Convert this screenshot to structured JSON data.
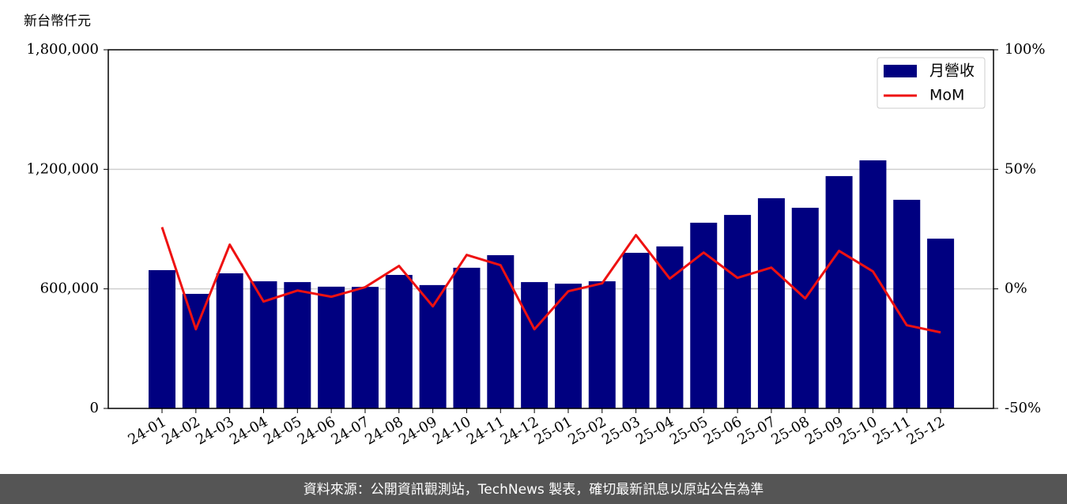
{
  "chart_data": {
    "type": "bar",
    "y_label": "新台幣仟元",
    "categories": [
      "24-01",
      "24-02",
      "24-03",
      "24-04",
      "24-05",
      "24-06",
      "24-07",
      "24-08",
      "24-09",
      "24-10",
      "24-11",
      "24-12",
      "25-01",
      "25-02",
      "25-03",
      "25-04",
      "25-05",
      "25-06",
      "25-07",
      "25-08",
      "25-09",
      "25-10",
      "25-11",
      "25-12"
    ],
    "series": [
      {
        "name": "月營收",
        "type": "bar",
        "color": "#000080",
        "values": [
          694000,
          575000,
          678000,
          638000,
          634000,
          611000,
          610000,
          670000,
          619000,
          706000,
          769000,
          634000,
          626000,
          638000,
          781000,
          813000,
          932000,
          971000,
          1055000,
          1007000,
          1166000,
          1245000,
          1047000,
          852000
        ]
      },
      {
        "name": "MoM",
        "type": "line",
        "axis": "y2",
        "color": "#ee1111",
        "values": [
          25.8,
          -16.9,
          18.5,
          -5.3,
          -0.7,
          -3.3,
          0.7,
          9.6,
          -7.3,
          14.2,
          9.9,
          -16.9,
          -1.0,
          2.3,
          22.5,
          4.3,
          15.2,
          4.6,
          8.9,
          -4.0,
          15.9,
          7.3,
          -15.2,
          -18.2
        ]
      }
    ],
    "ylim": [
      0,
      1800000
    ],
    "yticks": [
      0,
      {
        "value": 600000,
        "label": "600,000"
      },
      {
        "value": 1200000,
        "label": "1,200,000"
      },
      {
        "value": 1800000,
        "label": "1,800,000"
      }
    ],
    "y2lim": [
      -50,
      100
    ],
    "y2ticks": [
      {
        "value": -50,
        "label": "-50%"
      },
      {
        "value": 0,
        "label": "0%"
      },
      {
        "value": 50,
        "label": "50%"
      },
      {
        "value": 100,
        "label": "100%"
      }
    ],
    "grid": true,
    "legend": "upper right"
  },
  "footer": "資料來源：公開資訊觀測站，TechNews 製表，確切最新訊息以原站公告為準"
}
